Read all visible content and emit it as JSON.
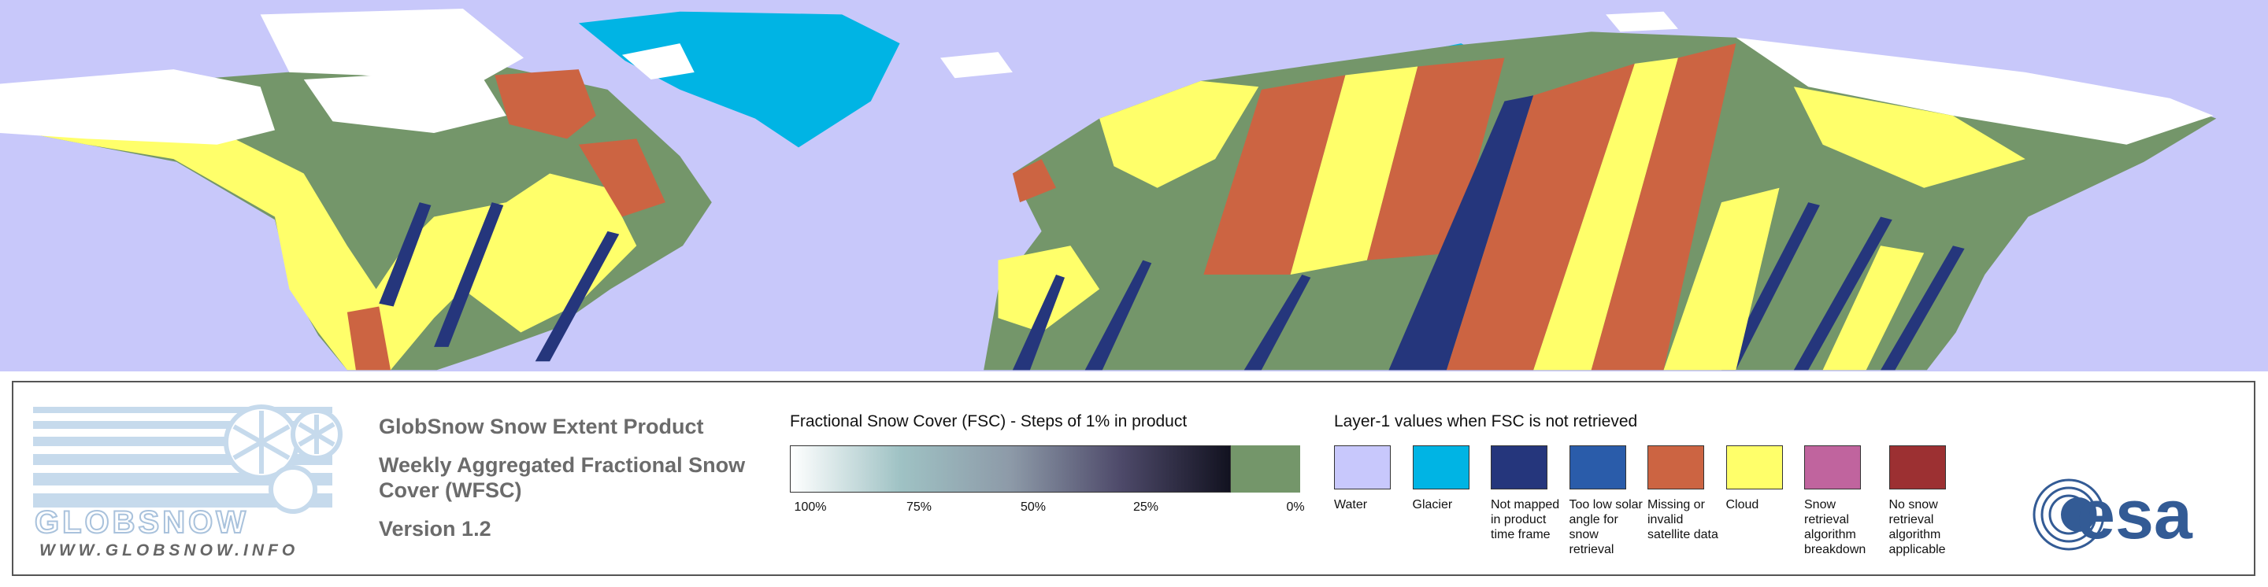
{
  "logo": {
    "name": "GLOBSNOW",
    "url": "WWW.GLOBSNOW.INFO"
  },
  "product": {
    "title": "GlobSnow Snow Extent Product",
    "subtitle": "Weekly Aggregated Fractional Snow Cover (WFSC)",
    "version": "Version 1.2"
  },
  "fsc_legend": {
    "title": "Fractional Snow Cover (FSC) - Steps of 1% in product",
    "ticks": [
      "100%",
      "75%",
      "50%",
      "25%",
      "0%"
    ]
  },
  "layer1_legend": {
    "title": "Layer-1 values when FSC is not retrieved",
    "items": [
      {
        "label": "Water",
        "color": "#c8c8fc"
      },
      {
        "label": "Glacier",
        "color": "#00b4e4"
      },
      {
        "label": "Not mapped in product time frame",
        "color": "#25367c"
      },
      {
        "label": "Too low solar angle for snow retrieval",
        "color": "#2a5caa"
      },
      {
        "label": "Missing or invalid satellite data",
        "color": "#cc6442"
      },
      {
        "label": "Cloud",
        "color": "#ffff6a"
      },
      {
        "label": "Snow retrieval algorithm breakdown",
        "color": "#c0649e"
      },
      {
        "label": "No snow retrieval algorithm applicable",
        "color": "#9c3032"
      }
    ]
  },
  "agency": {
    "name": "esa"
  }
}
